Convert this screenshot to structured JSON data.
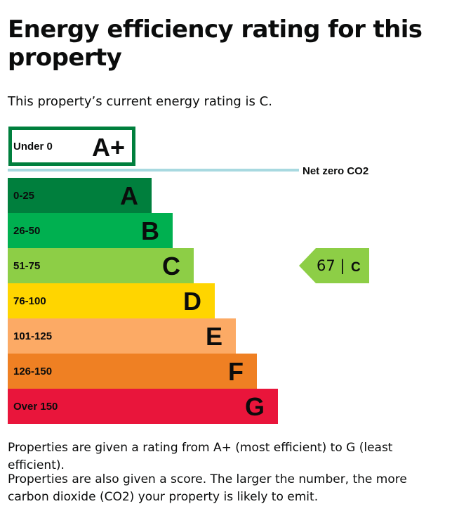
{
  "page": {
    "title": "Energy efficiency rating for this property",
    "intro": "This property’s current energy rating is C.",
    "explanation_1": "Properties are given a rating from A+ (most efficient) to G (least efficient).",
    "explanation_2": "Properties are also given a score. The larger the number, the more carbon dioxide (CO2) your property is likely to emit."
  },
  "chart_data": {
    "type": "bar",
    "bands": [
      {
        "letter": "A+",
        "range": "Under 0",
        "color": "#007f3d",
        "style": "outline"
      },
      {
        "letter": "A",
        "range": "0-25",
        "color": "#007f3d"
      },
      {
        "letter": "B",
        "range": "26-50",
        "color": "#00b050"
      },
      {
        "letter": "C",
        "range": "51-75",
        "color": "#8dce46"
      },
      {
        "letter": "D",
        "range": "76-100",
        "color": "#ffd500"
      },
      {
        "letter": "E",
        "range": "101-125",
        "color": "#fcaa65"
      },
      {
        "letter": "F",
        "range": "126-150",
        "color": "#ef8023"
      },
      {
        "letter": "G",
        "range": "Over 150",
        "color": "#e9153b"
      }
    ],
    "net_zero": {
      "label": "Net zero CO2",
      "color": "#a8d9e0"
    },
    "current_rating": {
      "score": 67,
      "letter": "C",
      "color": "#8dce46"
    }
  }
}
